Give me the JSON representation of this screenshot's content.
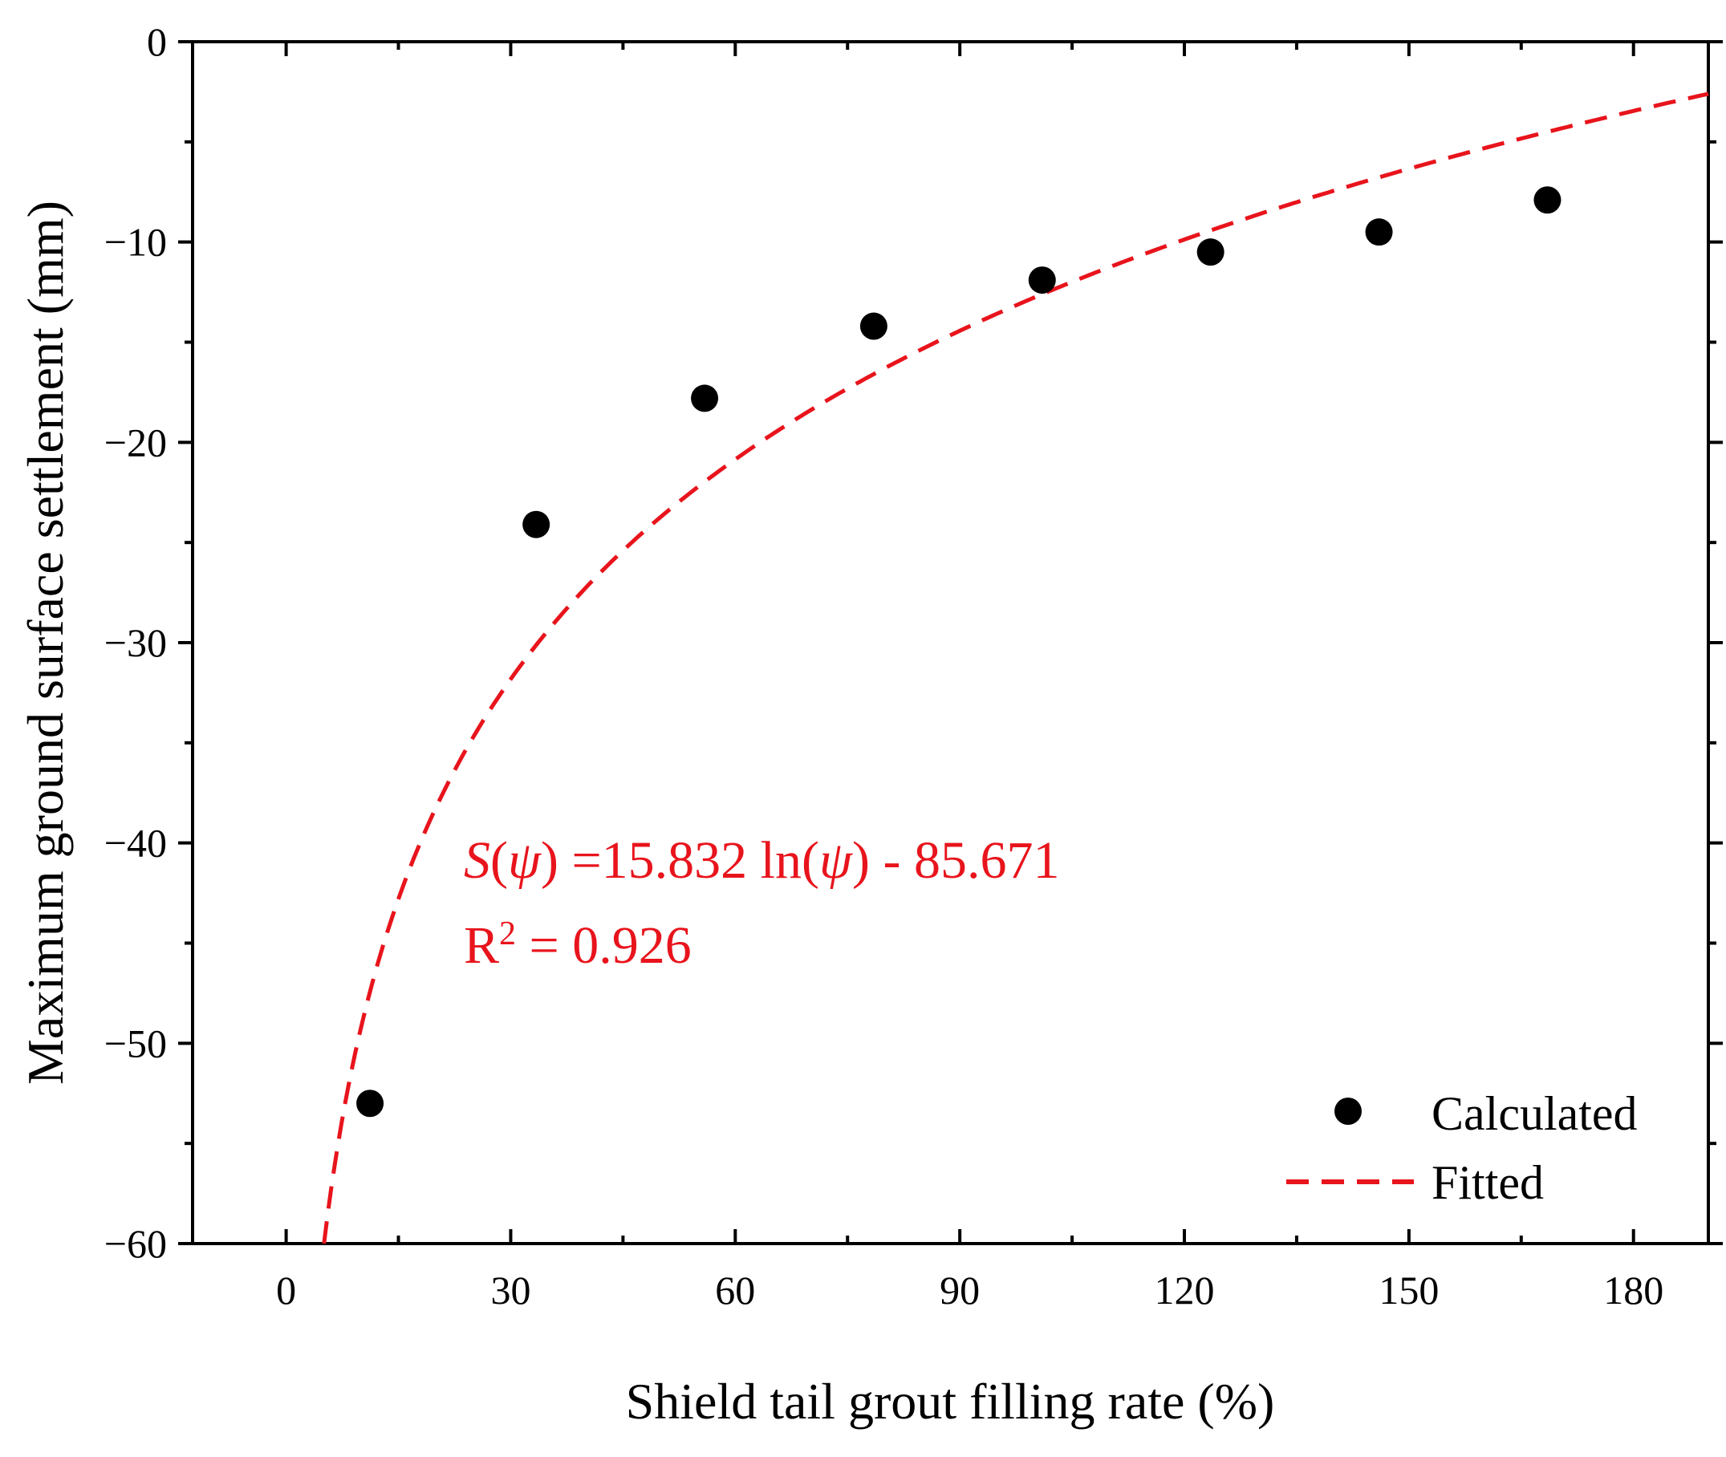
{
  "colors": {
    "points": "#000000",
    "fit": "#e8141c",
    "axis": "#000000",
    "background": "#ffffff"
  },
  "chart_data": {
    "type": "scatter",
    "title": "",
    "xlabel": "Shield tail grout filling rate (%)",
    "ylabel": "Maximum ground surface settlement (mm)",
    "xlim": [
      -12.5,
      190
    ],
    "ylim": [
      -60,
      0
    ],
    "xticks": [
      0,
      30,
      60,
      90,
      120,
      150,
      180
    ],
    "yticks": [
      0,
      -10,
      -20,
      -30,
      -40,
      -50,
      -60
    ],
    "xtick_labels": [
      "0",
      "30",
      "60",
      "90",
      "120",
      "150",
      "180"
    ],
    "ytick_labels": [
      "0",
      "−10",
      "−20",
      "−30",
      "−40",
      "−50",
      "−60"
    ],
    "grid": false,
    "legend_position": "bottom-right",
    "series": [
      {
        "name": "Calculated",
        "type": "scatter",
        "x": [
          11.2,
          33.4,
          55.9,
          78.5,
          101.0,
          123.5,
          146.0,
          168.5
        ],
        "y": [
          -53.0,
          -24.1,
          -17.8,
          -14.2,
          -11.9,
          -10.5,
          -9.5,
          -7.9
        ]
      },
      {
        "name": "Fitted",
        "type": "line",
        "style": "dashed",
        "function": "log",
        "a": 15.832,
        "b": -85.671,
        "x_range": [
          5,
          190
        ]
      }
    ],
    "annotation": {
      "equation_S": "S",
      "equation_open": "(",
      "equation_psi": "ψ",
      "equation_mid": ") =15.832 ln(",
      "equation_psi2": "ψ",
      "equation_end": ") - 85.671",
      "r2_label": "R",
      "r2_sup": "2",
      "r2_value": " = 0.926"
    }
  }
}
